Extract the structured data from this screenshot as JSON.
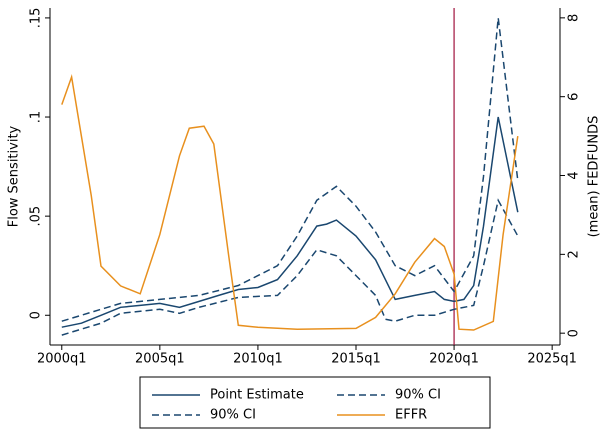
{
  "chart_data": {
    "type": "line",
    "y_label": "Flow Sensitivity",
    "y2_label": "(mean) FEDFUNDS",
    "xlim": [
      1999.4,
      2025.4
    ],
    "xticks": [
      {
        "value": 2000,
        "label": "2000q1"
      },
      {
        "value": 2005,
        "label": "2005q1"
      },
      {
        "value": 2010,
        "label": "2010q1"
      },
      {
        "value": 2015,
        "label": "2015q1"
      },
      {
        "value": 2020,
        "label": "2020q1"
      },
      {
        "value": 2025,
        "label": "2025q1"
      }
    ],
    "ylim": [
      -0.015,
      0.155
    ],
    "yticks": [
      0,
      {
        "value": 0.05,
        "label": ".05"
      },
      {
        "value": 0.1,
        "label": ".1"
      },
      {
        "value": 0.15,
        "label": ".15"
      }
    ],
    "y2lim": [
      -0.3,
      8.25
    ],
    "y2ticks": [
      0,
      2,
      4,
      6,
      8
    ],
    "vline": 2020,
    "vline_color": "#a0123c",
    "series": [
      {
        "name": "Point Estimate",
        "color": "#1a476f",
        "dash": false,
        "x": [
          2000,
          2001,
          2002,
          2003,
          2004,
          2005,
          2006,
          2007,
          2008,
          2009,
          2010,
          2011,
          2012,
          2013,
          2013.5,
          2014,
          2015,
          2016,
          2017,
          2018,
          2019,
          2019.5,
          2020,
          2020.5,
          2021,
          2021.5,
          2022.25,
          2023.25
        ],
        "values": [
          -0.006,
          -0.004,
          0.0,
          0.004,
          0.005,
          0.006,
          0.004,
          0.007,
          0.01,
          0.013,
          0.014,
          0.018,
          0.03,
          0.045,
          0.046,
          0.048,
          0.04,
          0.028,
          0.008,
          0.01,
          0.012,
          0.008,
          0.007,
          0.008,
          0.015,
          0.045,
          0.1,
          0.052
        ]
      },
      {
        "name": "90% CI",
        "color": "#1a476f",
        "dash": true,
        "x": [
          2000,
          2002,
          2003,
          2005,
          2007,
          2009,
          2011,
          2012,
          2013,
          2014,
          2015,
          2016,
          2017,
          2018,
          2019,
          2020,
          2021,
          2021.5,
          2022.25,
          2023.25
        ],
        "values": [
          -0.003,
          0.003,
          0.006,
          0.008,
          0.01,
          0.015,
          0.025,
          0.04,
          0.058,
          0.065,
          0.055,
          0.042,
          0.025,
          0.02,
          0.025,
          0.012,
          0.03,
          0.07,
          0.15,
          0.068
        ]
      },
      {
        "name": "90% CI",
        "color": "#1a476f",
        "dash": true,
        "x": [
          2000,
          2002,
          2003,
          2005,
          2006,
          2007,
          2009,
          2011,
          2012,
          2013,
          2014,
          2015,
          2016,
          2016.5,
          2017,
          2018,
          2019,
          2020,
          2021,
          2021.5,
          2022.25,
          2023.25
        ],
        "values": [
          -0.01,
          -0.004,
          0.001,
          0.003,
          0.001,
          0.004,
          0.009,
          0.01,
          0.02,
          0.033,
          0.03,
          0.02,
          0.01,
          -0.002,
          -0.003,
          0.0,
          0.0,
          0.003,
          0.005,
          0.025,
          0.058,
          0.04
        ]
      },
      {
        "name": "EFFR",
        "color": "#e8901e",
        "dash": false,
        "axis": "y2",
        "x": [
          2000,
          2000.5,
          2001,
          2001.5,
          2002,
          2003,
          2004,
          2005,
          2006,
          2006.5,
          2007.25,
          2007.75,
          2008.5,
          2009,
          2010,
          2012,
          2015,
          2016,
          2017,
          2018,
          2019,
          2019.5,
          2020,
          2020.25,
          2021,
          2022,
          2022.5,
          2023.25
        ],
        "values": [
          5.8,
          6.5,
          5.0,
          3.5,
          1.7,
          1.2,
          1.0,
          2.5,
          4.5,
          5.2,
          5.25,
          4.8,
          2.0,
          0.2,
          0.15,
          0.1,
          0.12,
          0.4,
          1.0,
          1.8,
          2.4,
          2.2,
          1.5,
          0.1,
          0.08,
          0.3,
          2.5,
          5.0
        ]
      }
    ]
  }
}
